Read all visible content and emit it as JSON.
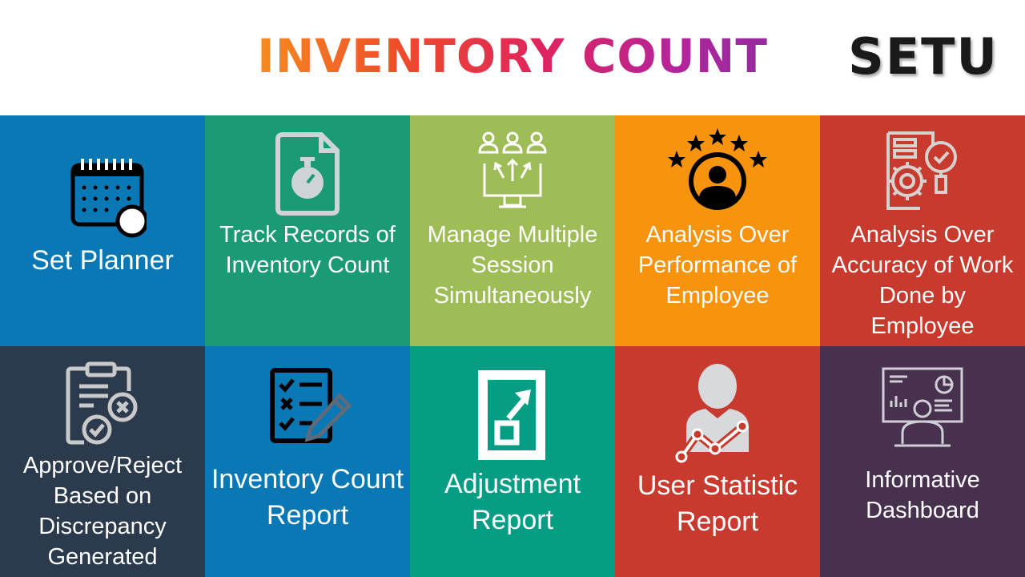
{
  "header": {
    "title": "INVENTORY COUNT",
    "logo": "SETU"
  },
  "tiles": [
    {
      "label": "Set Planner",
      "icon": "calendar-clock-icon",
      "color": "#0978b5"
    },
    {
      "label": "Track Records of Inventory Count",
      "icon": "stopwatch-document-icon",
      "color": "#1b9a76"
    },
    {
      "label": "Manage Multiple Session Simultaneously",
      "icon": "users-monitor-icon",
      "color": "#9ebd56"
    },
    {
      "label": "Analysis Over Performance of Employee",
      "icon": "star-employee-icon",
      "color": "#f7930d"
    },
    {
      "label": "Analysis Over Accuracy of Work Done by Employee",
      "icon": "gear-magnifier-icon",
      "color": "#c93a2e"
    },
    {
      "label": "Approve/Reject Based on Discrepancy Generated",
      "icon": "clipboard-approve-reject-icon",
      "color": "#2b3a4c"
    },
    {
      "label": "Inventory Count Report",
      "icon": "checklist-pencil-icon",
      "color": "#0978b5"
    },
    {
      "label": "Adjustment Report",
      "icon": "adjustment-arrow-icon",
      "color": "#059e84"
    },
    {
      "label": "User Statistic Report",
      "icon": "user-statistic-icon",
      "color": "#c93a2e"
    },
    {
      "label": "Informative Dashboard",
      "icon": "dashboard-presenter-icon",
      "color": "#48304f"
    }
  ]
}
